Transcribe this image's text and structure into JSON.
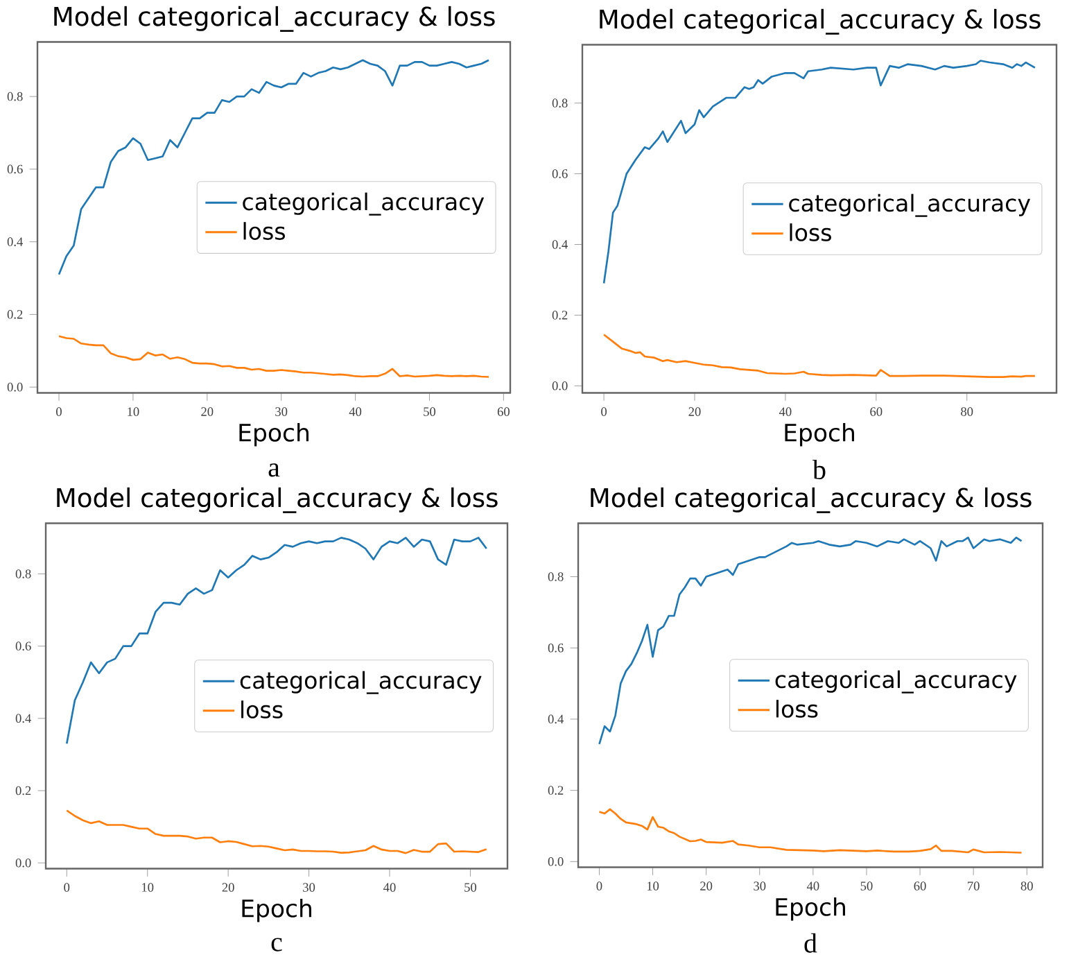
{
  "chart_data": [
    {
      "type": "line",
      "title": "Model categorical_accuracy & loss",
      "xlabel": "Epoch",
      "annotations": [
        "a"
      ],
      "legend": "right",
      "grid": false,
      "x": [
        0,
        1,
        2,
        3,
        4,
        5,
        6,
        7,
        8,
        9,
        10,
        11,
        12,
        13,
        14,
        15,
        16,
        17,
        18,
        19,
        20,
        21,
        22,
        23,
        24,
        25,
        26,
        27,
        28,
        29,
        30,
        31,
        32,
        33,
        34,
        35,
        36,
        37,
        38,
        39,
        40,
        41,
        42,
        43,
        44,
        45,
        46,
        47,
        48,
        49,
        50,
        51,
        52,
        53,
        54,
        55,
        56,
        57,
        58
      ],
      "xlim": [
        -2.9,
        60.9
      ],
      "xticks": [
        0,
        10,
        20,
        30,
        40,
        50,
        60
      ],
      "ylim": [
        -0.016,
        0.95
      ],
      "yticks": [
        {
          "value": 0,
          "label": "0.0"
        },
        {
          "value": 0.2,
          "label": "0.2"
        },
        {
          "value": 0.4,
          "label": "0.4"
        },
        {
          "value": 0.6,
          "label": "0.6"
        },
        {
          "value": 0.8,
          "label": "0.8"
        }
      ],
      "series": [
        {
          "name": "categorical_accuracy",
          "color": "#1f77b4",
          "values": [
            0.31,
            0.36,
            0.39,
            0.49,
            0.52,
            0.55,
            0.55,
            0.62,
            0.65,
            0.66,
            0.685,
            0.67,
            0.625,
            0.63,
            0.635,
            0.68,
            0.66,
            0.7,
            0.74,
            0.74,
            0.755,
            0.755,
            0.79,
            0.785,
            0.8,
            0.8,
            0.82,
            0.81,
            0.84,
            0.83,
            0.825,
            0.835,
            0.835,
            0.865,
            0.855,
            0.865,
            0.87,
            0.88,
            0.875,
            0.88,
            0.89,
            0.9,
            0.89,
            0.885,
            0.87,
            0.83,
            0.885,
            0.885,
            0.895,
            0.895,
            0.885,
            0.885,
            0.89,
            0.895,
            0.89,
            0.88,
            0.885,
            0.89,
            0.9
          ]
        },
        {
          "name": "loss",
          "color": "#ff7f0e",
          "values": [
            0.14,
            0.135,
            0.133,
            0.12,
            0.117,
            0.115,
            0.115,
            0.093,
            0.085,
            0.082,
            0.075,
            0.077,
            0.095,
            0.087,
            0.09,
            0.078,
            0.082,
            0.077,
            0.067,
            0.065,
            0.065,
            0.063,
            0.057,
            0.058,
            0.053,
            0.053,
            0.048,
            0.05,
            0.045,
            0.045,
            0.047,
            0.045,
            0.043,
            0.04,
            0.04,
            0.038,
            0.036,
            0.034,
            0.035,
            0.033,
            0.03,
            0.029,
            0.03,
            0.03,
            0.037,
            0.05,
            0.03,
            0.032,
            0.029,
            0.03,
            0.031,
            0.033,
            0.031,
            0.03,
            0.031,
            0.03,
            0.031,
            0.029,
            0.028
          ]
        }
      ]
    },
    {
      "type": "line",
      "title": "Model categorical_accuracy & loss",
      "xlabel": "Epoch",
      "annotations": [
        "b"
      ],
      "legend": "right",
      "grid": false,
      "xlim": [
        -4.75,
        99.75
      ],
      "xticks": [
        0,
        20,
        40,
        60,
        80
      ],
      "ylim": [
        -0.02,
        0.965
      ],
      "yticks": [
        {
          "value": 0,
          "label": "0.0"
        },
        {
          "value": 0.2,
          "label": "0.2"
        },
        {
          "value": 0.4,
          "label": "0.4"
        },
        {
          "value": 0.6,
          "label": "0.6"
        },
        {
          "value": 0.8,
          "label": "0.8"
        }
      ],
      "series": [
        {
          "name": "categorical_accuracy",
          "color": "#1f77b4",
          "x": [
            0,
            1,
            2,
            3,
            5,
            7,
            9,
            10,
            12,
            13,
            14,
            17,
            18,
            20,
            21,
            22,
            24,
            27,
            29,
            31,
            32,
            33,
            34,
            35,
            37,
            40,
            42,
            44,
            45,
            48,
            50,
            55,
            58,
            60,
            61,
            63,
            65,
            67,
            70,
            73,
            75,
            77,
            80,
            82,
            83,
            85,
            88,
            90,
            91,
            92,
            93,
            95
          ],
          "values": [
            0.29,
            0.38,
            0.49,
            0.51,
            0.6,
            0.64,
            0.675,
            0.67,
            0.7,
            0.72,
            0.69,
            0.75,
            0.715,
            0.74,
            0.78,
            0.76,
            0.79,
            0.815,
            0.815,
            0.845,
            0.84,
            0.845,
            0.865,
            0.855,
            0.875,
            0.885,
            0.885,
            0.87,
            0.89,
            0.895,
            0.9,
            0.895,
            0.9,
            0.9,
            0.85,
            0.905,
            0.9,
            0.91,
            0.905,
            0.895,
            0.905,
            0.9,
            0.905,
            0.91,
            0.92,
            0.915,
            0.91,
            0.9,
            0.91,
            0.905,
            0.915,
            0.9
          ]
        },
        {
          "name": "loss",
          "color": "#ff7f0e",
          "x": [
            0,
            2,
            4,
            6,
            7,
            8,
            9,
            11,
            13,
            14,
            16,
            18,
            20,
            22,
            24,
            26,
            28,
            30,
            32,
            34,
            36,
            40,
            42,
            44,
            45,
            48,
            50,
            55,
            60,
            61,
            63,
            66,
            70,
            75,
            80,
            85,
            88,
            90,
            92,
            93,
            95
          ],
          "values": [
            0.145,
            0.125,
            0.105,
            0.098,
            0.093,
            0.095,
            0.083,
            0.08,
            0.07,
            0.073,
            0.067,
            0.07,
            0.065,
            0.06,
            0.058,
            0.053,
            0.052,
            0.047,
            0.045,
            0.043,
            0.036,
            0.034,
            0.035,
            0.04,
            0.034,
            0.031,
            0.03,
            0.031,
            0.029,
            0.045,
            0.028,
            0.028,
            0.029,
            0.029,
            0.027,
            0.025,
            0.025,
            0.027,
            0.026,
            0.028,
            0.028
          ]
        }
      ]
    },
    {
      "type": "line",
      "title": "Model categorical_accuracy & loss",
      "xlabel": "Epoch",
      "annotations": [
        "c"
      ],
      "legend": "right",
      "grid": false,
      "x": [
        0,
        1,
        2,
        3,
        4,
        5,
        6,
        7,
        8,
        9,
        10,
        11,
        12,
        13,
        14,
        15,
        16,
        17,
        18,
        19,
        20,
        21,
        22,
        23,
        24,
        25,
        26,
        27,
        28,
        29,
        30,
        31,
        32,
        33,
        34,
        35,
        36,
        37,
        38,
        39,
        40,
        41,
        42,
        43,
        44,
        45,
        46,
        47,
        48,
        49,
        50,
        51,
        52
      ],
      "xlim": [
        -2.6,
        54.6
      ],
      "xticks": [
        0,
        10,
        20,
        30,
        40,
        50
      ],
      "ylim": [
        -0.016,
        0.94
      ],
      "yticks": [
        {
          "value": 0,
          "label": "0.0"
        },
        {
          "value": 0.2,
          "label": "0.2"
        },
        {
          "value": 0.4,
          "label": "0.4"
        },
        {
          "value": 0.6,
          "label": "0.6"
        },
        {
          "value": 0.8,
          "label": "0.8"
        }
      ],
      "series": [
        {
          "name": "categorical_accuracy",
          "color": "#1f77b4",
          "values": [
            0.33,
            0.45,
            0.5,
            0.555,
            0.525,
            0.555,
            0.565,
            0.6,
            0.6,
            0.635,
            0.635,
            0.695,
            0.72,
            0.72,
            0.715,
            0.745,
            0.76,
            0.745,
            0.755,
            0.81,
            0.79,
            0.81,
            0.825,
            0.85,
            0.84,
            0.845,
            0.86,
            0.88,
            0.875,
            0.885,
            0.89,
            0.885,
            0.89,
            0.89,
            0.9,
            0.895,
            0.885,
            0.87,
            0.84,
            0.875,
            0.89,
            0.885,
            0.9,
            0.875,
            0.895,
            0.89,
            0.84,
            0.825,
            0.895,
            0.89,
            0.89,
            0.9,
            0.87
          ]
        },
        {
          "name": "loss",
          "color": "#ff7f0e",
          "values": [
            0.145,
            0.13,
            0.118,
            0.11,
            0.115,
            0.105,
            0.105,
            0.105,
            0.1,
            0.095,
            0.095,
            0.08,
            0.075,
            0.075,
            0.075,
            0.073,
            0.067,
            0.07,
            0.07,
            0.057,
            0.06,
            0.058,
            0.052,
            0.046,
            0.047,
            0.045,
            0.04,
            0.035,
            0.037,
            0.033,
            0.033,
            0.032,
            0.032,
            0.031,
            0.028,
            0.029,
            0.032,
            0.035,
            0.047,
            0.037,
            0.033,
            0.033,
            0.027,
            0.036,
            0.031,
            0.031,
            0.052,
            0.054,
            0.031,
            0.032,
            0.031,
            0.03,
            0.038
          ]
        }
      ]
    },
    {
      "type": "line",
      "title": "Model categorical_accuracy & loss",
      "xlabel": "Epoch",
      "annotations": [
        "d"
      ],
      "legend": "right",
      "grid": false,
      "xlim": [
        -3.95,
        82.95
      ],
      "xticks": [
        0,
        10,
        20,
        30,
        40,
        50,
        60,
        70,
        80
      ],
      "ylim": [
        -0.016,
        0.95
      ],
      "yticks": [
        {
          "value": 0,
          "label": "0.0"
        },
        {
          "value": 0.2,
          "label": "0.2"
        },
        {
          "value": 0.4,
          "label": "0.4"
        },
        {
          "value": 0.6,
          "label": "0.6"
        },
        {
          "value": 0.8,
          "label": "0.8"
        }
      ],
      "series": [
        {
          "name": "categorical_accuracy",
          "color": "#1f77b4",
          "x": [
            0,
            1,
            2,
            3,
            4,
            5,
            6,
            7,
            8,
            9,
            10,
            11,
            12,
            13,
            14,
            15,
            16,
            17,
            18,
            19,
            20,
            22,
            24,
            25,
            26,
            28,
            30,
            31,
            33,
            35,
            36,
            37,
            40,
            41,
            43,
            45,
            47,
            48,
            50,
            52,
            54,
            56,
            57,
            59,
            60,
            62,
            63,
            64,
            65,
            67,
            68,
            69,
            70,
            72,
            73,
            75,
            77,
            78,
            79
          ],
          "values": [
            0.33,
            0.38,
            0.365,
            0.41,
            0.5,
            0.535,
            0.555,
            0.585,
            0.62,
            0.665,
            0.575,
            0.65,
            0.66,
            0.69,
            0.69,
            0.75,
            0.77,
            0.795,
            0.795,
            0.775,
            0.8,
            0.81,
            0.82,
            0.805,
            0.835,
            0.845,
            0.855,
            0.855,
            0.87,
            0.885,
            0.895,
            0.89,
            0.895,
            0.9,
            0.89,
            0.885,
            0.89,
            0.9,
            0.895,
            0.885,
            0.9,
            0.895,
            0.905,
            0.89,
            0.9,
            0.88,
            0.845,
            0.9,
            0.885,
            0.9,
            0.9,
            0.91,
            0.88,
            0.905,
            0.9,
            0.905,
            0.895,
            0.91,
            0.9
          ]
        },
        {
          "name": "loss",
          "color": "#ff7f0e",
          "x": [
            0,
            1,
            2,
            3,
            4,
            5,
            7,
            8,
            9,
            10,
            11,
            12,
            13,
            14,
            15,
            17,
            18,
            19,
            20,
            23,
            25,
            26,
            28,
            30,
            32,
            35,
            40,
            42,
            45,
            50,
            52,
            55,
            58,
            60,
            62,
            63,
            64,
            66,
            69,
            70,
            72,
            75,
            79
          ],
          "values": [
            0.14,
            0.135,
            0.147,
            0.135,
            0.12,
            0.11,
            0.105,
            0.1,
            0.09,
            0.125,
            0.098,
            0.095,
            0.085,
            0.08,
            0.07,
            0.057,
            0.058,
            0.062,
            0.055,
            0.053,
            0.058,
            0.048,
            0.045,
            0.04,
            0.04,
            0.033,
            0.031,
            0.029,
            0.032,
            0.029,
            0.031,
            0.028,
            0.028,
            0.03,
            0.035,
            0.045,
            0.03,
            0.03,
            0.026,
            0.034,
            0.026,
            0.027,
            0.025
          ]
        }
      ]
    }
  ]
}
